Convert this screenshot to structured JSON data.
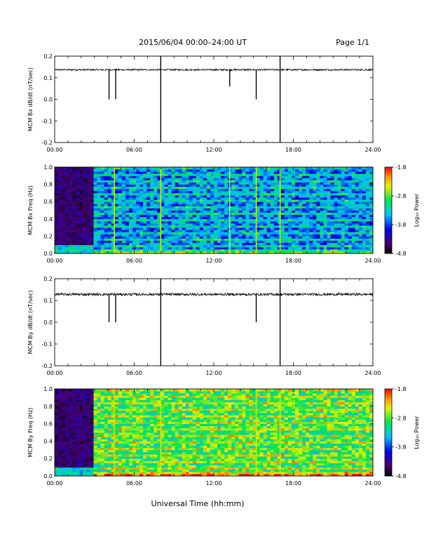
{
  "header": {
    "title": "2015/06/04  00:00–24:00 UT",
    "page": "Page 1/1"
  },
  "x_axis": {
    "label": "Universal Time (hh:mm)",
    "range_hours": [
      0,
      24
    ],
    "tick_hours": [
      0,
      6,
      12,
      18,
      24
    ],
    "tick_labels": [
      "00:00",
      "06:00",
      "12:00",
      "18:00",
      "24:00"
    ]
  },
  "colorbar": {
    "label": "Log₁₀ Power",
    "range": [
      -4.8,
      -1.8
    ],
    "ticks": [
      -4.8,
      -3.8,
      -2.8,
      -1.8
    ],
    "tick_labels": [
      "-4.8",
      "-3.8",
      "-2.8",
      "-1.8"
    ]
  },
  "chart_data": [
    {
      "type": "line",
      "ylabel": "MCM Bx dB/dt (nT/sec)",
      "ylim": [
        -0.2,
        0.2
      ],
      "yticks": [
        -0.2,
        -0.1,
        0.0,
        0.1,
        0.2
      ],
      "ytick_labels": [
        "-0.2",
        "-0.1",
        "0.0",
        "0.1",
        "0.2"
      ],
      "baseline": 0.137,
      "noise": 0.004,
      "spikes": [
        {
          "hour": 4.1,
          "min": 0.0
        },
        {
          "hour": 4.6,
          "min": 0.0
        },
        {
          "hour": 8.0,
          "min": -0.2,
          "max": 0.2
        },
        {
          "hour": 13.2,
          "min": 0.06
        },
        {
          "hour": 15.2,
          "min": 0.0
        },
        {
          "hour": 17.0,
          "min": -0.2,
          "max": 0.2
        }
      ]
    },
    {
      "type": "heatmap",
      "ylabel": "MCM Bx Freq (Hz)",
      "ylim": [
        0,
        1.0
      ],
      "yticks": [
        0.0,
        0.2,
        0.4,
        0.6,
        0.8,
        1.0
      ],
      "ytick_labels": [
        "0.0",
        "0.2",
        "0.4",
        "0.6",
        "0.8",
        "1.0"
      ],
      "quiet_until_hour": 3.0,
      "level": -3.6,
      "vertical_lines_hours": [
        4.5,
        8.0,
        13.2,
        15.2,
        17.0
      ]
    },
    {
      "type": "line",
      "ylabel": "MCM By dB/dt (nT/sec)",
      "ylim": [
        -0.2,
        0.2
      ],
      "yticks": [
        -0.2,
        -0.1,
        0.0,
        0.1,
        0.2
      ],
      "ytick_labels": [
        "-0.2",
        "-0.1",
        "0.0",
        "0.1",
        "0.2"
      ],
      "baseline": 0.128,
      "noise": 0.006,
      "spikes": [
        {
          "hour": 4.1,
          "min": 0.0
        },
        {
          "hour": 4.6,
          "min": 0.0
        },
        {
          "hour": 8.0,
          "min": -0.2,
          "max": 0.2
        },
        {
          "hour": 15.2,
          "min": 0.0
        },
        {
          "hour": 17.0,
          "min": -0.2,
          "max": 0.2
        }
      ]
    },
    {
      "type": "heatmap",
      "ylabel": "MCM By Freq (Hz)",
      "ylim": [
        0,
        1.0
      ],
      "yticks": [
        0.0,
        0.2,
        0.4,
        0.6,
        0.8,
        1.0
      ],
      "ytick_labels": [
        "0.0",
        "0.2",
        "0.4",
        "0.6",
        "0.8",
        "1.0"
      ],
      "quiet_until_hour": 3.0,
      "level": -2.9,
      "vertical_lines_hours": [
        4.5,
        8.0,
        15.2,
        17.0
      ]
    }
  ]
}
